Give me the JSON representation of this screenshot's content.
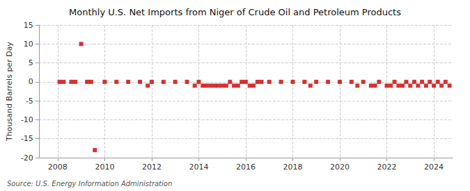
{
  "chart_data": {
    "type": "scatter",
    "title": "Monthly U.S. Net Imports from Niger of Crude Oil and Petroleum Products",
    "ylabel": "Thousand Barrels per Day",
    "annotations": [
      "Source: U.S. Energy Information Administration"
    ],
    "x": [
      2008.08,
      2008.25,
      2008.58,
      2008.75,
      2009.0,
      2009.25,
      2009.42,
      2009.58,
      2010.0,
      2010.5,
      2011.0,
      2011.5,
      2011.83,
      2012.0,
      2012.5,
      2013.0,
      2013.5,
      2013.83,
      2014.0,
      2014.17,
      2014.33,
      2014.5,
      2014.67,
      2014.83,
      2015.0,
      2015.17,
      2015.33,
      2015.5,
      2015.67,
      2015.83,
      2016.0,
      2016.17,
      2016.33,
      2016.5,
      2016.67,
      2017.0,
      2017.5,
      2018.0,
      2018.5,
      2018.75,
      2019.0,
      2019.5,
      2020.0,
      2020.5,
      2020.75,
      2021.0,
      2021.33,
      2021.5,
      2021.67,
      2022.0,
      2022.17,
      2022.33,
      2022.5,
      2022.67,
      2022.83,
      2023.0,
      2023.17,
      2023.33,
      2023.5,
      2023.67,
      2023.83,
      2024.0,
      2024.17,
      2024.33,
      2024.5,
      2024.67
    ],
    "values": [
      0,
      0,
      0,
      0,
      10,
      0,
      0,
      -18,
      0,
      0,
      0,
      0,
      -1,
      0,
      0,
      0,
      0,
      -1,
      0,
      -1,
      -1,
      -1,
      -1,
      -1,
      -1,
      -1,
      0,
      -1,
      -1,
      0,
      0,
      -1,
      -1,
      0,
      0,
      0,
      0,
      0,
      0,
      -1,
      0,
      0,
      0,
      0,
      -1,
      0,
      -1,
      -1,
      0,
      -1,
      -1,
      0,
      -1,
      -1,
      0,
      -1,
      0,
      -1,
      0,
      -1,
      0,
      -1,
      0,
      -1,
      0,
      -1
    ],
    "color": "#cc0000",
    "marker": "square",
    "xlim": [
      2007.2,
      2024.8
    ],
    "xticks": [
      2008,
      2010,
      2012,
      2014,
      2016,
      2018,
      2020,
      2022,
      2024
    ],
    "ylim": [
      -20,
      15
    ],
    "yticks": [
      -20,
      -15,
      -10,
      -5,
      0,
      5,
      10,
      15
    ],
    "grid": true
  }
}
